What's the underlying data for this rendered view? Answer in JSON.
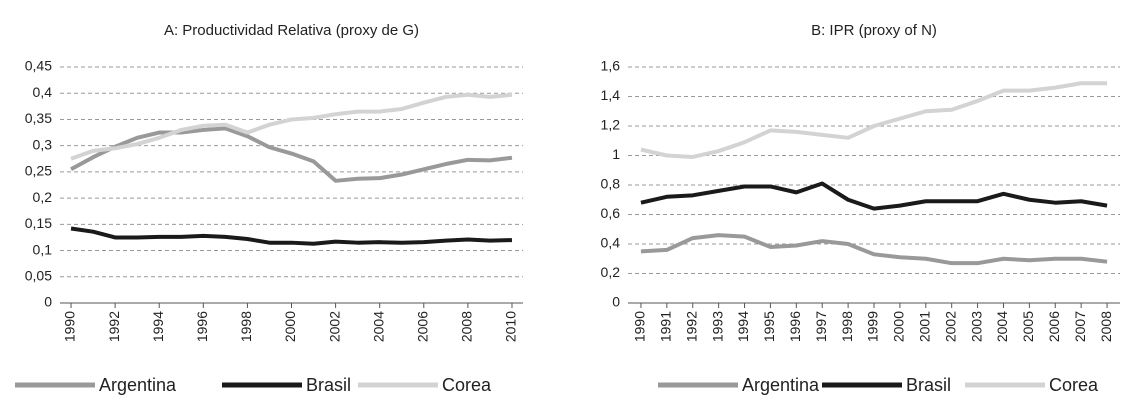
{
  "chart_data": [
    {
      "type": "line",
      "title": "A: Productividad Relativa (proxy de G)",
      "x": [
        1990,
        1991,
        1992,
        1993,
        1994,
        1995,
        1996,
        1997,
        1998,
        1999,
        2000,
        2001,
        2002,
        2003,
        2004,
        2005,
        2006,
        2007,
        2008,
        2009,
        2010
      ],
      "xlim": [
        1990,
        2010
      ],
      "xticks": [
        1990,
        1992,
        1994,
        1996,
        1998,
        2000,
        2002,
        2004,
        2006,
        2008,
        2010
      ],
      "ylim": [
        0,
        0.45
      ],
      "yticks": [
        0,
        {
          "value": 0.05,
          "label": "0,05"
        },
        {
          "value": 0.1,
          "label": "0,1"
        },
        {
          "value": 0.15,
          "label": "0,15"
        },
        {
          "value": 0.2,
          "label": "0,2"
        },
        {
          "value": 0.25,
          "label": "0,25"
        },
        {
          "value": 0.3,
          "label": "0,3"
        },
        {
          "value": 0.35,
          "label": "0,35"
        },
        {
          "value": 0.4,
          "label": "0,4"
        },
        {
          "value": 0.45,
          "label": "0,45"
        }
      ],
      "grid": true,
      "legend": "bottom",
      "series": [
        {
          "name": "Argentina",
          "color": "#999999",
          "values": [
            0.255,
            0.278,
            0.298,
            0.315,
            0.325,
            0.325,
            0.33,
            0.333,
            0.318,
            0.297,
            0.285,
            0.27,
            0.233,
            0.237,
            0.238,
            0.245,
            0.255,
            0.265,
            0.273,
            0.272,
            0.277
          ]
        },
        {
          "name": "Brasil",
          "color": "#1a1a1a",
          "values": [
            0.142,
            0.136,
            0.125,
            0.125,
            0.126,
            0.126,
            0.128,
            0.126,
            0.122,
            0.115,
            0.115,
            0.113,
            0.117,
            0.115,
            0.116,
            0.115,
            0.116,
            0.119,
            0.121,
            0.119,
            0.12
          ]
        },
        {
          "name": "Corea",
          "color": "#d3d3d3",
          "values": [
            0.275,
            0.29,
            0.295,
            0.303,
            0.315,
            0.33,
            0.338,
            0.34,
            0.325,
            0.34,
            0.35,
            0.353,
            0.36,
            0.365,
            0.365,
            0.37,
            0.382,
            0.393,
            0.397,
            0.393,
            0.397
          ]
        }
      ]
    },
    {
      "type": "line",
      "title": "B: IPR (proxy of N)",
      "x": [
        1990,
        1991,
        1992,
        1993,
        1994,
        1995,
        1996,
        1997,
        1998,
        1999,
        2000,
        2001,
        2002,
        2003,
        2004,
        2005,
        2006,
        2007,
        2008
      ],
      "xlim": [
        1990,
        2008
      ],
      "xticks": [
        1990,
        1991,
        1992,
        1993,
        1994,
        1995,
        1996,
        1997,
        1998,
        1999,
        2000,
        2001,
        2002,
        2003,
        2004,
        2005,
        2006,
        2007,
        2008
      ],
      "ylim": [
        0,
        1.6
      ],
      "yticks": [
        0,
        {
          "value": 0.2,
          "label": "0,2"
        },
        {
          "value": 0.4,
          "label": "0,4"
        },
        {
          "value": 0.6,
          "label": "0,6"
        },
        {
          "value": 0.8,
          "label": "0,8"
        },
        1,
        {
          "value": 1.2,
          "label": "1,2"
        },
        {
          "value": 1.4,
          "label": "1,4"
        },
        {
          "value": 1.6,
          "label": "1,6"
        }
      ],
      "grid": true,
      "legend": "bottom",
      "series": [
        {
          "name": "Argentina",
          "color": "#999999",
          "values": [
            0.35,
            0.36,
            0.44,
            0.46,
            0.45,
            0.38,
            0.39,
            0.42,
            0.4,
            0.33,
            0.31,
            0.3,
            0.27,
            0.27,
            0.3,
            0.29,
            0.3,
            0.3,
            0.28
          ]
        },
        {
          "name": "Brasil",
          "color": "#1a1a1a",
          "values": [
            0.68,
            0.72,
            0.73,
            0.76,
            0.79,
            0.79,
            0.75,
            0.81,
            0.7,
            0.64,
            0.66,
            0.69,
            0.69,
            0.69,
            0.74,
            0.7,
            0.68,
            0.69,
            0.66
          ]
        },
        {
          "name": "Corea",
          "color": "#d3d3d3",
          "values": [
            1.04,
            1.0,
            0.99,
            1.03,
            1.09,
            1.17,
            1.16,
            1.14,
            1.12,
            1.2,
            1.25,
            1.3,
            1.31,
            1.37,
            1.44,
            1.44,
            1.46,
            1.49,
            1.49
          ]
        }
      ]
    }
  ]
}
